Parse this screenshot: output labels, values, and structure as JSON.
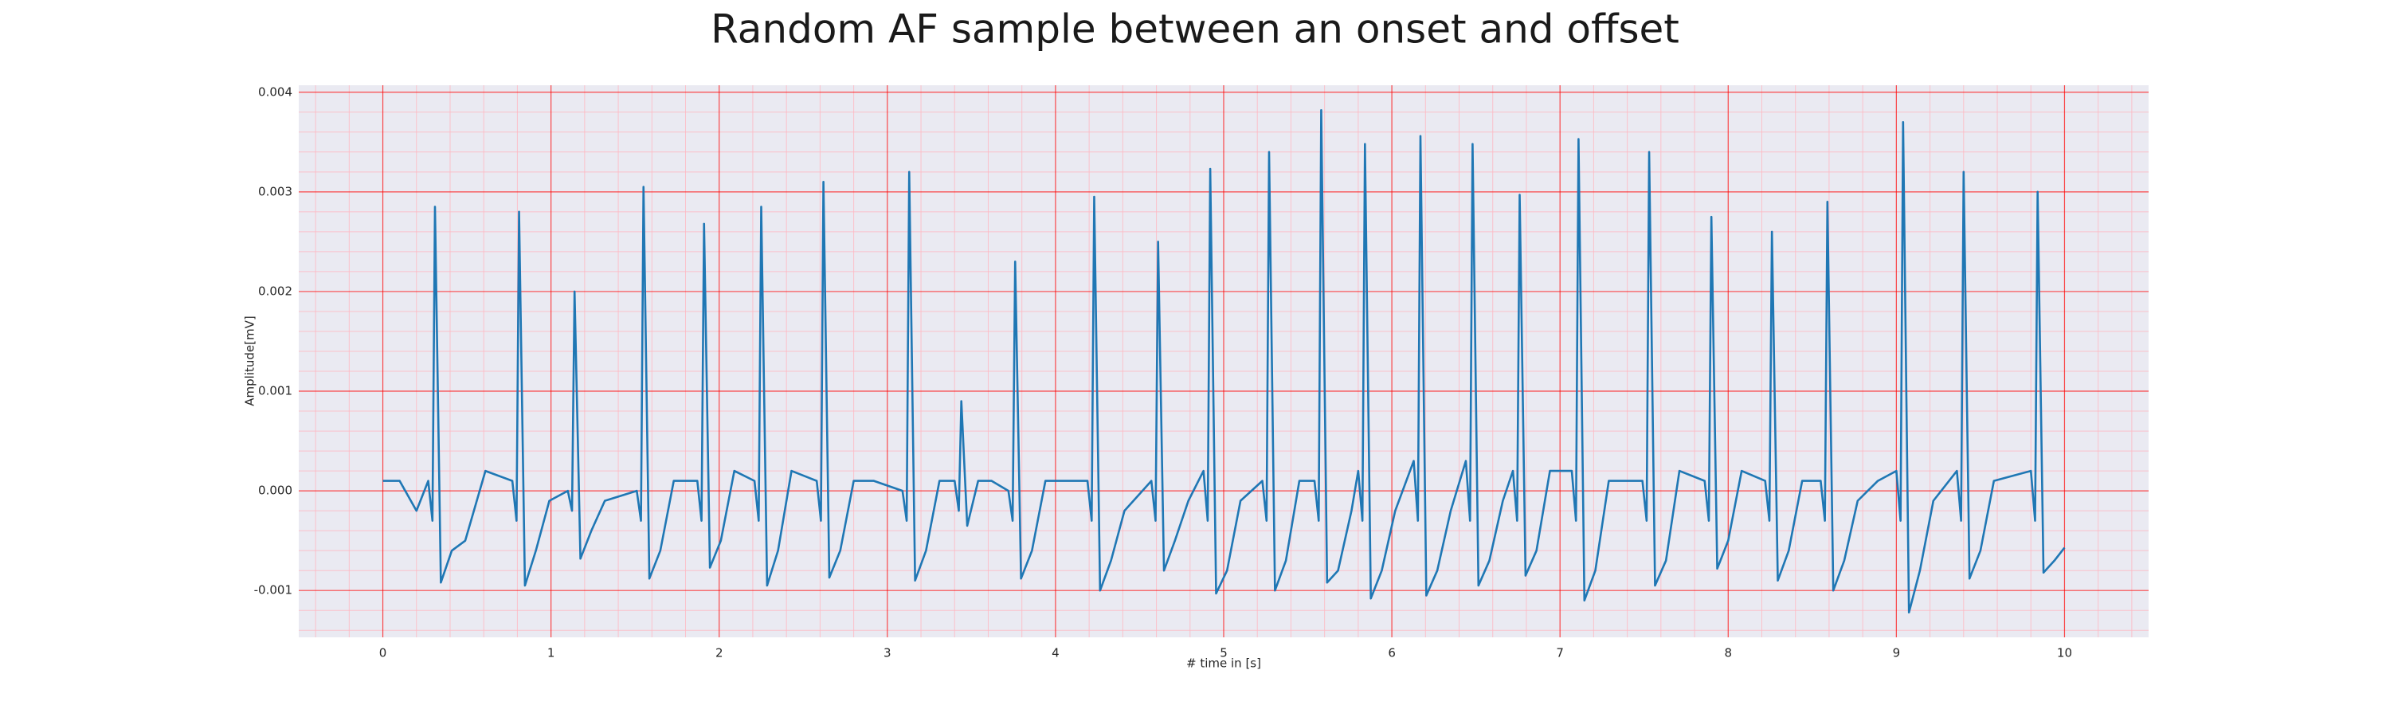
{
  "chart_data": {
    "type": "line",
    "title": "Random AF sample between an onset and offset",
    "x_label": "# time in [s]",
    "y_label": "Amplitude[mV]",
    "xlim": [
      -0.5,
      10.5
    ],
    "ylim": [
      -0.00147,
      0.00407
    ],
    "xticks": [
      0,
      1,
      2,
      3,
      4,
      5,
      6,
      7,
      8,
      9,
      10
    ],
    "yticks": [
      -0.001,
      {
        "value": 0,
        "label": "0.000"
      },
      0.001,
      0.002,
      0.003,
      0.004
    ],
    "grid": true,
    "grid_color": "#ff0000",
    "minor_grid_color": "#ffb6c1",
    "minor_divisions": 5,
    "background": "#eaeaf2",
    "series": [
      {
        "color": "#1f77b4",
        "x": [
          0,
          0.1,
          0.2,
          0.27,
          0.295,
          0.31,
          0.345,
          0.41,
          0.49,
          0.61,
          0.77,
          0.795,
          0.81,
          0.845,
          0.91,
          0.99,
          1.1,
          1.125,
          1.14,
          1.175,
          1.24,
          1.32,
          1.51,
          1.535,
          1.55,
          1.585,
          1.65,
          1.73,
          1.87,
          1.895,
          1.91,
          1.945,
          2.01,
          2.09,
          2.21,
          2.235,
          2.25,
          2.285,
          2.35,
          2.43,
          2.58,
          2.605,
          2.62,
          2.655,
          2.72,
          2.8,
          2.92,
          3.09,
          3.115,
          3.13,
          3.165,
          3.23,
          3.31,
          3.4,
          3.425,
          3.44,
          3.475,
          3.54,
          3.62,
          3.72,
          3.745,
          3.76,
          3.795,
          3.86,
          3.94,
          4.06,
          4.19,
          4.215,
          4.23,
          4.265,
          4.33,
          4.41,
          4.57,
          4.595,
          4.61,
          4.645,
          4.71,
          4.79,
          4.88,
          4.905,
          4.92,
          4.955,
          5.02,
          5.1,
          5.23,
          5.255,
          5.27,
          5.305,
          5.37,
          5.45,
          5.54,
          5.565,
          5.58,
          5.615,
          5.68,
          5.76,
          5.8,
          5.825,
          5.84,
          5.875,
          5.94,
          6.02,
          6.13,
          6.155,
          6.17,
          6.205,
          6.27,
          6.35,
          6.44,
          6.465,
          6.48,
          6.515,
          6.58,
          6.66,
          6.72,
          6.745,
          6.76,
          6.795,
          6.86,
          6.94,
          7.07,
          7.095,
          7.11,
          7.145,
          7.21,
          7.29,
          7.49,
          7.515,
          7.53,
          7.565,
          7.63,
          7.71,
          7.86,
          7.885,
          7.9,
          7.935,
          8.0,
          8.08,
          8.22,
          8.245,
          8.26,
          8.295,
          8.36,
          8.44,
          8.55,
          8.575,
          8.59,
          8.625,
          8.69,
          8.77,
          8.89,
          9.0,
          9.025,
          9.04,
          9.075,
          9.14,
          9.22,
          9.36,
          9.385,
          9.4,
          9.435,
          9.5,
          9.58,
          9.8,
          9.825,
          9.84,
          9.875,
          9.94,
          10.0
        ],
        "values": [
          0.0001,
          0.0001,
          -0.0002,
          0.0001,
          -0.0003,
          0.00285,
          -0.00092,
          -0.0006,
          -0.0005,
          0.0002,
          0.0001,
          -0.0003,
          0.0028,
          -0.00095,
          -0.0006,
          -0.0001,
          0,
          -0.0002,
          0.002,
          -0.00068,
          -0.0004,
          -0.0001,
          0,
          -0.0003,
          0.00305,
          -0.00088,
          -0.0006,
          0.0001,
          0.0001,
          -0.0003,
          0.00268,
          -0.00077,
          -0.0005,
          0.0002,
          0.0001,
          -0.0003,
          0.00285,
          -0.00095,
          -0.0006,
          0.0002,
          0.0001,
          -0.0003,
          0.0031,
          -0.00087,
          -0.0006,
          0.0001,
          0.0001,
          0,
          -0.0003,
          0.0032,
          -0.0009,
          -0.0006,
          0.0001,
          0.0001,
          -0.0002,
          0.0009,
          -0.00035,
          0.0001,
          0.0001,
          0,
          -0.0003,
          0.0023,
          -0.00088,
          -0.0006,
          0.0001,
          0.0001,
          0.0001,
          -0.0003,
          0.00295,
          -0.001,
          -0.0007,
          -0.0002,
          0.0001,
          -0.0003,
          0.0025,
          -0.0008,
          -0.0005,
          -0.0001,
          0.0002,
          -0.0003,
          0.00323,
          -0.00103,
          -0.0008,
          -0.0001,
          0.0001,
          -0.0003,
          0.0034,
          -0.001,
          -0.0007,
          0.0001,
          0.0001,
          -0.0003,
          0.00382,
          -0.00092,
          -0.0008,
          -0.0002,
          0.0002,
          -0.0003,
          0.00348,
          -0.00108,
          -0.0008,
          -0.0002,
          0.0003,
          -0.0003,
          0.00356,
          -0.00105,
          -0.0008,
          -0.0002,
          0.0003,
          -0.0003,
          0.00348,
          -0.00095,
          -0.0007,
          -0.0001,
          0.0002,
          -0.0003,
          0.00297,
          -0.00085,
          -0.0006,
          0.0002,
          0.0002,
          -0.0003,
          0.00353,
          -0.0011,
          -0.0008,
          0.0001,
          0.0001,
          -0.0003,
          0.0034,
          -0.00095,
          -0.0007,
          0.0002,
          0.0001,
          -0.0003,
          0.00275,
          -0.00078,
          -0.0005,
          0.0002,
          0.0001,
          -0.0003,
          0.0026,
          -0.0009,
          -0.0006,
          0.0001,
          0.0001,
          -0.0003,
          0.0029,
          -0.001,
          -0.0007,
          -0.0001,
          0.0001,
          0.0002,
          -0.0003,
          0.0037,
          -0.00122,
          -0.0008,
          -0.0001,
          0.0002,
          -0.0003,
          0.0032,
          -0.00088,
          -0.0006,
          0.0001,
          0.0002,
          -0.0003,
          0.003,
          -0.00082,
          -0.0007,
          -0.00057
        ]
      }
    ]
  }
}
